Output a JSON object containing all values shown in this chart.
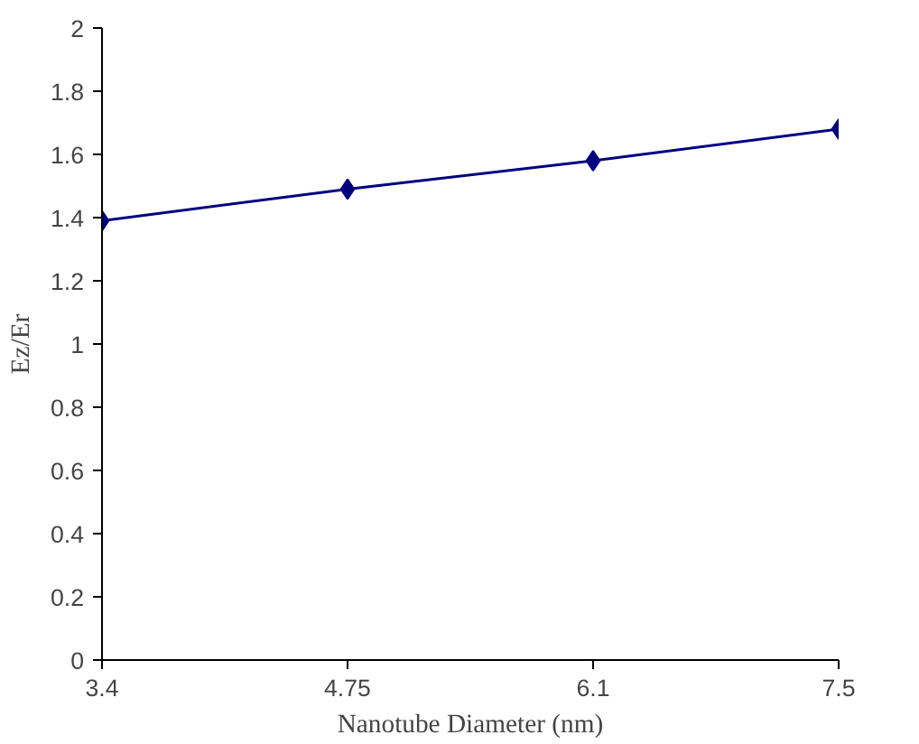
{
  "chart_data": {
    "type": "line",
    "xlabel": "Nanotube Diameter (nm)",
    "ylabel": "Ez/Er",
    "categories": [
      "3.4",
      "4.75",
      "6.1",
      "7.5"
    ],
    "series": [
      {
        "color": "#000080",
        "values": [
          1.39,
          1.49,
          1.58,
          1.68
        ]
      }
    ],
    "ylim": [
      0,
      2
    ],
    "yticks": [
      0,
      0.2,
      0.4,
      0.6,
      0.8,
      1,
      1.2,
      1.4,
      1.6,
      1.8,
      2
    ],
    "grid": false,
    "marker": "diamond",
    "line_style": "solid"
  }
}
